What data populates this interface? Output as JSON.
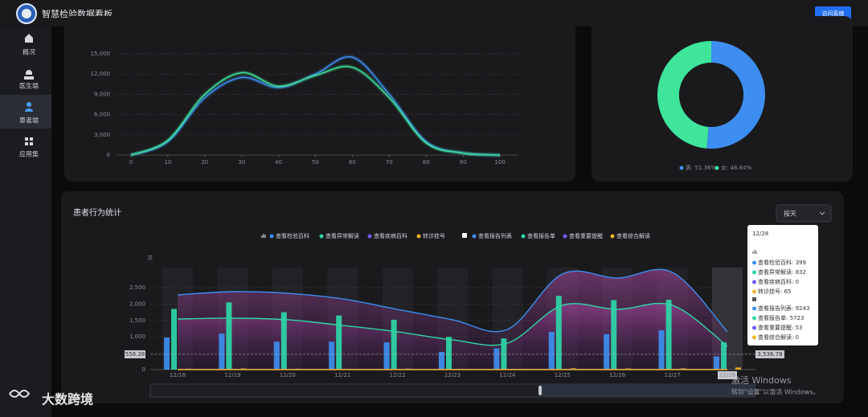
{
  "header": {
    "title": "智慧检验数据看板",
    "button": "访问系统"
  },
  "nav": [
    "概况",
    "医生端",
    "患者端",
    "应用集"
  ],
  "chart_data": [
    {
      "type": "line",
      "x": [
        0,
        10,
        20,
        30,
        40,
        50,
        60,
        70,
        80,
        90,
        100
      ],
      "xlim": [
        0,
        100
      ],
      "xticks": [
        0,
        10,
        20,
        30,
        40,
        50,
        60,
        70,
        80,
        90,
        100
      ],
      "ylim": [
        0,
        15000
      ],
      "yticks": [
        0,
        {
          "value": 3000,
          "label": "3,000"
        },
        {
          "value": 6000,
          "label": "6,000"
        },
        {
          "value": 9000,
          "label": "9,000"
        },
        {
          "value": 12000,
          "label": "12,000"
        },
        {
          "value": 15000,
          "label": "15,000"
        }
      ],
      "grid": true,
      "series": [
        {
          "color": "#3d8ef0",
          "values": [
            0,
            2000,
            8500,
            11500,
            10000,
            12000,
            14500,
            9000,
            2000,
            300,
            0
          ]
        },
        {
          "color": "#3ee59a",
          "values": [
            0,
            2200,
            9000,
            12200,
            10200,
            11800,
            13000,
            8500,
            1800,
            300,
            0
          ]
        }
      ]
    },
    {
      "type": "pie",
      "hole": true,
      "categories": [
        "男",
        "女"
      ],
      "values": [
        51.36,
        48.64
      ],
      "colors": [
        "#3d8ef0",
        "#3ee59a"
      ],
      "legend_labels": [
        "男: 51.36%",
        "女: 48.64%"
      ]
    },
    {
      "type": "bar",
      "title": "患者行为统计",
      "filter": "按天",
      "y_label": "次",
      "categories": [
        "12/18",
        "12/19",
        "12/20",
        "12/21",
        "12/22",
        "12/23",
        "12/24",
        "12/25",
        "12/26",
        "12/27",
        "12/28"
      ],
      "ylim": [
        0,
        3000
      ],
      "yticks": [
        0,
        500,
        {
          "value": 1000,
          "label": "1,000"
        },
        {
          "value": 1500,
          "label": "1,500"
        },
        {
          "value": 2000,
          "label": "2,000"
        },
        {
          "value": 2500,
          "label": "2,500"
        }
      ],
      "y2lim": [
        0,
        24000
      ],
      "grid": true,
      "series": [
        {
          "name": "查看检验百科",
          "color": "#3d8ef0",
          "kind": "bar",
          "values": [
            980,
            1100,
            850,
            850,
            830,
            540,
            650,
            1150,
            1080,
            1200,
            399
          ]
        },
        {
          "name": "查看异常解读",
          "color": "#2ed6a8",
          "kind": "bar",
          "values": [
            1850,
            2050,
            1750,
            1650,
            1520,
            1000,
            950,
            2250,
            2120,
            2130,
            832
          ]
        },
        {
          "name": "查看疾病百科",
          "color": "#6a5cf0",
          "kind": "bar",
          "values": [
            0,
            0,
            0,
            0,
            0,
            0,
            0,
            0,
            0,
            0,
            0
          ]
        },
        {
          "name": "转诊挂号",
          "color": "#f0b429",
          "kind": "bar",
          "values": [
            30,
            35,
            28,
            25,
            30,
            20,
            22,
            40,
            35,
            38,
            65
          ]
        },
        {
          "name": "查看报告列表",
          "color": "#3d8ef0",
          "kind": "line",
          "axis": "y2",
          "values": [
            18240,
            19020,
            18620,
            17260,
            14700,
            12160,
            9800,
            23340,
            22350,
            23730,
            9243
          ]
        },
        {
          "name": "查看报告单",
          "color": "#2ed6a8",
          "kind": "line",
          "axis": "y2",
          "values": [
            12350,
            12550,
            12160,
            10780,
            9220,
            7260,
            6470,
            15690,
            14700,
            15690,
            5723
          ]
        },
        {
          "name": "查看重要提醒",
          "color": "#6a5cf0",
          "kind": "line",
          "axis": "y2",
          "values": [
            60,
            58,
            55,
            50,
            48,
            40,
            38,
            70,
            65,
            68,
            53
          ]
        },
        {
          "name": "查看综合解读",
          "color": "#f0b429",
          "kind": "line",
          "axis": "y2",
          "values": [
            0,
            0,
            0,
            0,
            0,
            0,
            0,
            0,
            0,
            0,
            0
          ]
        }
      ],
      "pointer_labels": [
        "558.28",
        "3,536.78"
      ],
      "tooltip": {
        "title": "12/28",
        "rows": [
          "查看检验百科: 399",
          "查看异常解读: 832",
          "查看疾病百科: 0",
          "转诊挂号: 65",
          "查看报告列表: 9243",
          "查看报告单: 5723",
          "查看重要提醒: 53",
          "查看综合解读: 0"
        ]
      }
    }
  ],
  "watermark": "大数跨境",
  "os_notice": [
    "激活 Windows",
    "转到\"设置\"以激活 Windows。"
  ]
}
